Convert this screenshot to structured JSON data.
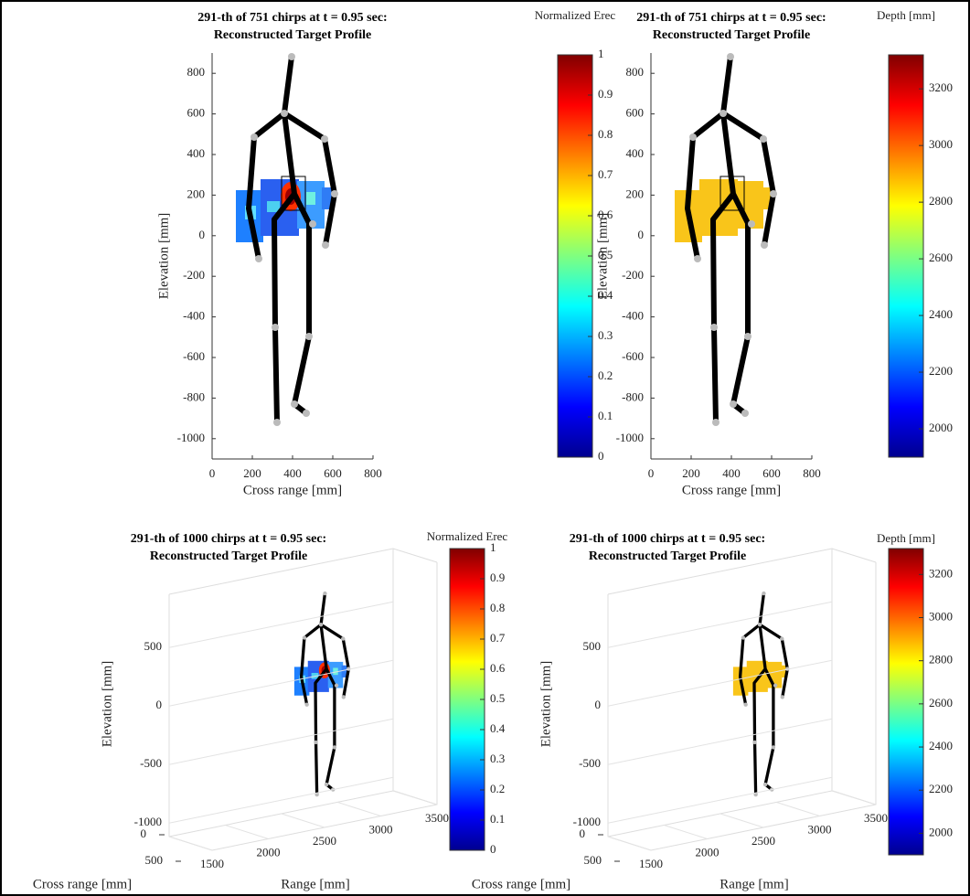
{
  "chart_data": [
    {
      "type": "image2d",
      "title": "291-th of 751 chirps at t = 0.95 sec:",
      "subtitle": "Reconstructed Target Profile",
      "xlabel": "Cross range [mm]",
      "ylabel": "Elevation [mm]",
      "xlim": [
        0,
        800
      ],
      "xticks": [
        0,
        200,
        400,
        600,
        800
      ],
      "ylim": [
        -1100,
        900
      ],
      "yticks": [
        -1000,
        -800,
        -600,
        -400,
        -200,
        0,
        200,
        400,
        600,
        800
      ],
      "colorbar": {
        "label": "Normalized Erec",
        "lim": [
          0,
          1
        ],
        "ticks": [
          0,
          0.1,
          0.2,
          0.3,
          0.4,
          0.5,
          0.6,
          0.7,
          0.8,
          0.9,
          1
        ]
      }
    },
    {
      "type": "image2d",
      "title": "291-th of 751 chirps at t = 0.95 sec:",
      "subtitle": "Reconstructed Target Profile",
      "xlabel": "Cross range [mm]",
      "ylabel": "Elevation [mm]",
      "xlim": [
        0,
        800
      ],
      "xticks": [
        0,
        200,
        400,
        600,
        800
      ],
      "ylim": [
        -1100,
        900
      ],
      "yticks": [
        -1000,
        -800,
        -600,
        -400,
        -200,
        0,
        200,
        400,
        600,
        800
      ],
      "colorbar": {
        "label": "Depth [mm]",
        "lim": [
          1900,
          3320
        ],
        "ticks": [
          2000,
          2200,
          2400,
          2600,
          2800,
          3000,
          3200
        ]
      }
    },
    {
      "type": "image3d",
      "title": "291-th of 1000 chirps at t = 0.95 sec:",
      "subtitle": "Reconstructed Target Profile",
      "xlabel": "Cross range [mm]",
      "ylabel": "Range [mm]",
      "zlabel": "Elevation [mm]",
      "xlim": [
        0,
        500
      ],
      "xticks": [
        0,
        500
      ],
      "ylim": [
        1500,
        3500
      ],
      "yticks": [
        1500,
        2000,
        2500,
        3000,
        3500
      ],
      "zlim": [
        -1100,
        900
      ],
      "zticks": [
        -1000,
        -500,
        0,
        500
      ],
      "colorbar": {
        "label": "Normalized Erec",
        "lim": [
          0,
          1
        ],
        "ticks": [
          0,
          0.1,
          0.2,
          0.3,
          0.4,
          0.5,
          0.6,
          0.7,
          0.8,
          0.9,
          1
        ]
      }
    },
    {
      "type": "image3d",
      "title": "291-th of 1000 chirps at t = 0.95 sec:",
      "subtitle": "Reconstructed Target Profile",
      "xlabel": "Cross range [mm]",
      "ylabel": "Range [mm]",
      "zlabel": "Elevation [mm]",
      "xlim": [
        0,
        500
      ],
      "xticks": [
        0,
        500
      ],
      "ylim": [
        1500,
        3500
      ],
      "yticks": [
        1500,
        2000,
        2500,
        3000,
        3500
      ],
      "zlim": [
        -1100,
        900
      ],
      "zticks": [
        -1000,
        -500,
        0,
        500
      ],
      "colorbar": {
        "label": "Depth [mm]",
        "lim": [
          1900,
          3320
        ],
        "ticks": [
          2000,
          2200,
          2400,
          2600,
          2800,
          3000,
          3200
        ]
      }
    }
  ]
}
